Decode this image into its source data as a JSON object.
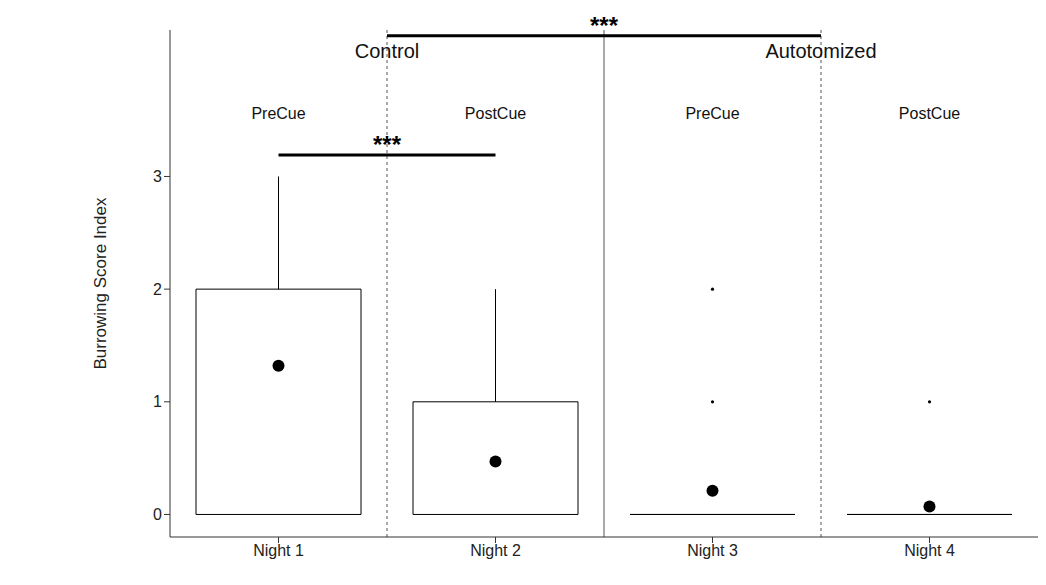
{
  "chart_data": {
    "type": "box",
    "y_label": "Burrowing Score Index",
    "categories": [
      "Night 1",
      "Night 2",
      "Night 3",
      "Night 4"
    ],
    "cue_labels": [
      "PreCue",
      "PostCue",
      "PreCue",
      "PostCue"
    ],
    "groups": [
      {
        "name": "Control",
        "categories": [
          "Night 1",
          "Night 2"
        ]
      },
      {
        "name": "Autotomized",
        "categories": [
          "Night 3",
          "Night 4"
        ]
      }
    ],
    "whisker_low": [
      0,
      0,
      0,
      0
    ],
    "q1": [
      0,
      0,
      0,
      0
    ],
    "q3": [
      2,
      1,
      0,
      0
    ],
    "whisker_high": [
      3,
      2,
      0,
      0
    ],
    "mean": [
      1.32,
      0.47,
      0.21,
      0.07
    ],
    "outliers": [
      [],
      [],
      [
        1,
        2
      ],
      [
        1
      ]
    ],
    "color": "#000000",
    "ylim": [
      -0.2,
      4.3
    ],
    "yticks": [
      0,
      1,
      2,
      3
    ],
    "annotations": [
      {
        "text": "***",
        "from": "Night 1",
        "to": "Night 2",
        "y": 3.19
      },
      {
        "text": "***",
        "from": "Control",
        "to": "Autotomized",
        "y": 4.25
      }
    ]
  }
}
